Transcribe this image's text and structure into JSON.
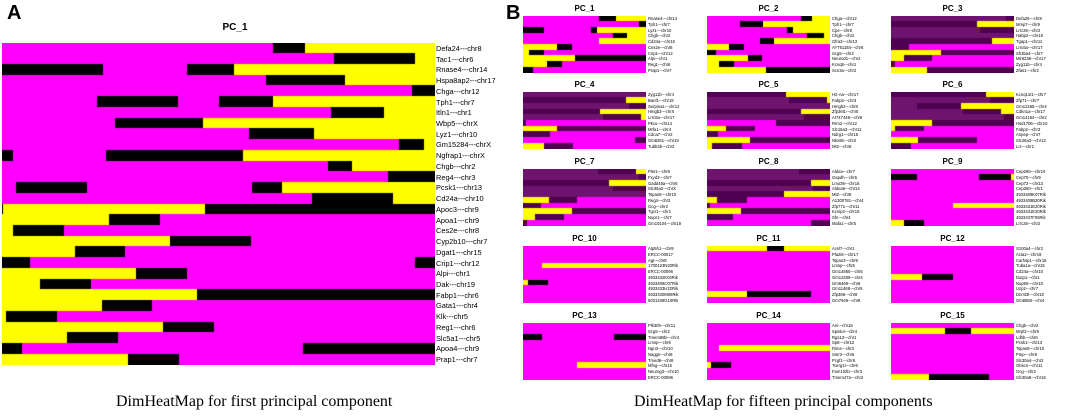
{
  "panel_a": {
    "letter": "A",
    "caption": "DimHeatMap for first principal component"
  },
  "panel_b": {
    "letter": "B",
    "caption": "DimHeatMap for fifteen principal components"
  },
  "colors": {
    "low": "#ff00ff",
    "mid": "#000000",
    "high": "#ffff00",
    "background": "#ffffff"
  },
  "chart_data": [
    {
      "type": "heatmap",
      "title": "PC_1",
      "colorscale": [
        "#ff00ff",
        "#000000",
        "#ffff00"
      ],
      "rows": [
        "Defa24---chr8",
        "Tac1---chr6",
        "Rnase4---chr14",
        "Hspa8ap2---chr17",
        "Chga---chr12",
        "Tph1---chr7",
        "Itln1---chr1",
        "Wbp5---chrX",
        "Lyz1---chr10",
        "Gm15284---chrX",
        "Ngfrap1---chrX",
        "Chgb---chr2",
        "Reg4---chr3",
        "Pcsk1---chr13",
        "Cd24a---chr10",
        "Apoc3---chr9",
        "Apoa1---chr9",
        "Ces2e---chr8",
        "Cyp2b10---chr7",
        "Dgat1---chr15",
        "Crip1---chr12",
        "Alpi---chr1",
        "Dak---chr19",
        "Fabp1---chr6",
        "Gata1---chr4",
        "Klk---chr5",
        "Reg1---chr6",
        "Slc5a1---chr5",
        "Apoa4---chr9",
        "Prap1---chr7"
      ]
    },
    {
      "type": "heatmap_grid",
      "colorscale": [
        "#ff00ff",
        "#000000",
        "#ffff00"
      ],
      "panels": [
        {
          "title": "PC_1",
          "genes": [
            "Rnase4---chr14",
            "Tph1---chr7",
            "Lyz1---chr10",
            "Chgb---chr2",
            "Cd24a---chr10",
            "Ces2e---chr8",
            "Crip1---chr12",
            "Alpi---chr1",
            "Reg1---chr6",
            "Prap1---chr7"
          ]
        },
        {
          "title": "PC_2",
          "genes": [
            "Chga---chr12",
            "Tph1---chr7",
            "Cpe---chr8",
            "Chgb---chr2",
            "Gfra3---chr13",
            "AY761184---chr8",
            "Scg5---chr2",
            "Neurod1---chr2",
            "Kcnq5---chr1",
            "Scn3a---chr2"
          ]
        },
        {
          "title": "PC_3",
          "genes": [
            "Defa26---chr8",
            "Mmp7---chr9",
            "Lrrc26---chr2",
            "Habp2---chr19",
            "Tgap1---chr11",
            "Lrrc6a---chr17",
            "Sh3ba4---chr7",
            "Mir6236---chr17",
            "Zyg11b---chr4",
            "Zfas1---chr2"
          ]
        },
        {
          "title": "PC_4",
          "genes": [
            "Zyg11b---chr4",
            "Banf1---chr19",
            "Serpina1---chr12",
            "Hmgb3---chrX",
            "Lrrc6a---chr17",
            "Pkcu---chr14",
            "Mrfa1---chr4",
            "Cdca7---chr2",
            "Gm8251---chr19",
            "Tubb4b---chr2"
          ]
        },
        {
          "title": "PC_5",
          "genes": [
            "H2-Aa---chr17",
            "Fabp2---chr3",
            "Hmgb2---chr8",
            "Zfp36l1---chr5",
            "AI747448---chr6",
            "Rrm2---chr12",
            "Slc16a3---chr11",
            "Ndrg1---chr15",
            "Nkx6b---chr2",
            "Mt2---chr8"
          ]
        },
        {
          "title": "PC_6",
          "genes": [
            "Kcnq1ot1---chr7",
            "Zfp71---chr7",
            "Gm12265---chr4",
            "Cdkn1a---chr17",
            "Gm14164---chr2",
            "Hsd17b6---chr10",
            "Fabp2---chr3",
            "Anpep---chr7",
            "Slc26a3---chr12",
            "Lct---chr1"
          ]
        },
        {
          "title": "PC_7",
          "genes": [
            "Plet1---chr9",
            "Fxyd3---chr7",
            "Gadd45a---chr6",
            "Slc35a2---chrX",
            "Tspan8---chr10",
            "Reg4---chr3",
            "Gcg---chr2",
            "Tgcr1---chr1",
            "Nupr1---chr7",
            "Gm10104---chr18"
          ]
        },
        {
          "title": "PC_8",
          "genes": [
            "Aldoa---chr7",
            "Gapdh---chr6",
            "Lmo36---chr16",
            "Aldoa5---chr14",
            "Mt2---chr8",
            "A1300781---chr4",
            "Zfp771---chr11",
            "Kcnip2---chr19",
            "Sfn---chr4",
            "Mafa1---chr5"
          ]
        },
        {
          "title": "PC_9",
          "genes": [
            "Cep290---chr10",
            "Cep70---chr9",
            "Cep72---chr13",
            "Cep350---chr1",
            "4933409K07Rik",
            "4933409B20Rik",
            "4933431E20Rik",
            "4933431E20Rik",
            "4933437F05Rik",
            "Lrrc26---chr2"
          ]
        },
        {
          "title": "PC_10",
          "genes": [
            "Atp5h1---chr9",
            "ERCC-00017",
            "Agt---chr8",
            "1700123N20Rik",
            "ERCC-00096",
            "4933432K03Rik",
            "4933409C07Rik",
            "4933433H22Rik",
            "4933430M08Rik",
            "5031439G10Rik"
          ]
        },
        {
          "title": "PC_11",
          "genes": [
            "Acsl7---chr1",
            "Pla2i6---chr17",
            "Tspan3---chr9",
            "Lmnp---chr6",
            "Gm14850---chr5",
            "Gm12409---chr4",
            "Gm6469---chr6",
            "Gm11468---chr5",
            "Zfp386---chr8",
            "Gm7949---chr8"
          ]
        },
        {
          "title": "PC_12",
          "genes": [
            "S100a4---chr3",
            "Acta2---chr19",
            "Carhsp1---chr16",
            "Tuba1a---chr15",
            "Cd24a---chr10",
            "Dutp1---chr1",
            "Nup60---chr10",
            "Ucp2---chr7",
            "Dnmt3l---chr10",
            "Gm8850---chr4"
          ]
        },
        {
          "title": "PC_13",
          "genes": [
            "Plk3rl5---chr11",
            "Scg5---chr2",
            "Tmem88b---chr4",
            "Lmnp---chr6",
            "Ngn3---chr10",
            "Naggs---chr8",
            "Tmed6---chr8",
            "Mfng---chr15",
            "Neurog3---chr10",
            "ERCC-00096"
          ]
        },
        {
          "title": "PC_14",
          "genes": [
            "Ani---chr18",
            "Spink4---chr4",
            "Rgs13---chr1",
            "Sp8---chr12",
            "Rims---chr3",
            "Smr3---chr5",
            "Pcgf1---chr6",
            "Tcerg1l---chr6",
            "Fam102b---chr3",
            "Tmem47a---chr2"
          ]
        },
        {
          "title": "PC_15",
          "genes": [
            "Chgb---chr2",
            "Mrpl3---chr9",
            "Ldhb---chr6",
            "Pcsk1---chr13",
            "Tspan8---chr10",
            "Pmp---chr8",
            "Slc30a4---chr2",
            "Obscn---chr11",
            "Gcg---chr2",
            "Slc30a8---chr15"
          ]
        }
      ]
    }
  ]
}
